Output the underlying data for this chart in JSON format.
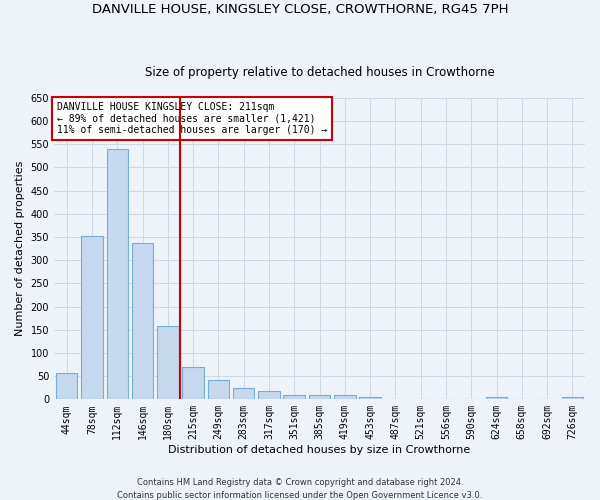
{
  "title": "DANVILLE HOUSE, KINGSLEY CLOSE, CROWTHORNE, RG45 7PH",
  "subtitle": "Size of property relative to detached houses in Crowthorne",
  "xlabel": "Distribution of detached houses by size in Crowthorne",
  "ylabel": "Number of detached properties",
  "categories": [
    "44sqm",
    "78sqm",
    "112sqm",
    "146sqm",
    "180sqm",
    "215sqm",
    "249sqm",
    "283sqm",
    "317sqm",
    "351sqm",
    "385sqm",
    "419sqm",
    "453sqm",
    "487sqm",
    "521sqm",
    "556sqm",
    "590sqm",
    "624sqm",
    "658sqm",
    "692sqm",
    "726sqm"
  ],
  "values": [
    57,
    352,
    540,
    336,
    157,
    70,
    42,
    25,
    17,
    10,
    9,
    9,
    4,
    1,
    1,
    1,
    0,
    5,
    0,
    0,
    5
  ],
  "bar_color": "#c5d8ee",
  "bar_edge_color": "#7aadd4",
  "grid_color": "#d0d8e8",
  "background_color": "#eef2f9",
  "vline_x": 4.5,
  "vline_color": "#cc0000",
  "annotation_text": "DANVILLE HOUSE KINGSLEY CLOSE: 211sqm\n← 89% of detached houses are smaller (1,421)\n11% of semi-detached houses are larger (170) →",
  "annotation_box_color": "#ffffff",
  "annotation_box_edge": "#cc0000",
  "footer": "Contains HM Land Registry data © Crown copyright and database right 2024.\nContains public sector information licensed under the Open Government Licence v3.0.",
  "ylim": [
    0,
    650
  ],
  "yticks": [
    0,
    50,
    100,
    150,
    200,
    250,
    300,
    350,
    400,
    450,
    500,
    550,
    600,
    650
  ],
  "title_fontsize": 9.5,
  "subtitle_fontsize": 8.5,
  "ylabel_fontsize": 8,
  "xlabel_fontsize": 8,
  "tick_fontsize": 7,
  "annotation_fontsize": 7,
  "footer_fontsize": 6
}
